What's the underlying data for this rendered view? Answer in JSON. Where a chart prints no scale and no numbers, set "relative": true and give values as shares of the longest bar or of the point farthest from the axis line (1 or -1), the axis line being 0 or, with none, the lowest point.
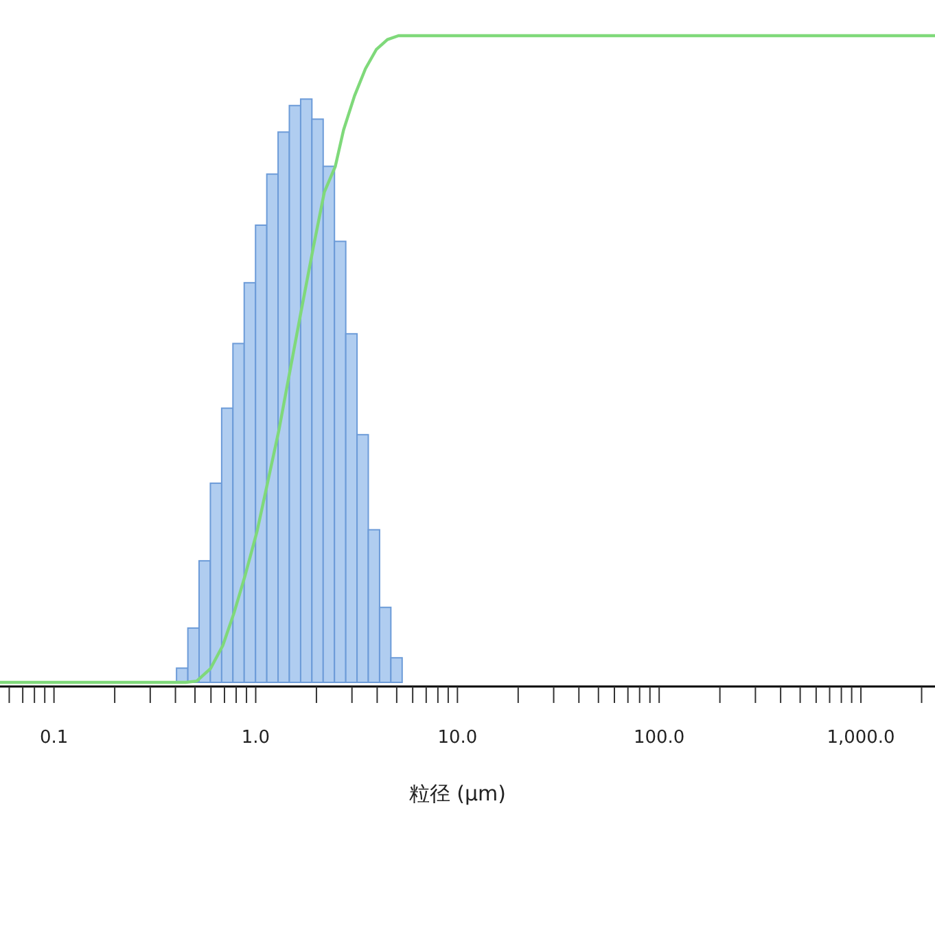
{
  "chart_data": {
    "type": "histogram",
    "xlabel": "粒径 (μm)",
    "log": "x",
    "relative": true,
    "tick_labels": "x",
    "xlim": [
      0.054,
      2330
    ],
    "xticks": [
      {
        "value": 0.06,
        "label": null
      },
      {
        "value": 0.07,
        "label": null
      },
      {
        "value": 0.08,
        "label": null
      },
      {
        "value": 0.09,
        "label": null
      },
      {
        "value": 0.1,
        "label": "0.1"
      },
      {
        "value": 0.2,
        "label": null
      },
      {
        "value": 0.3,
        "label": null
      },
      {
        "value": 0.4,
        "label": null
      },
      {
        "value": 0.5,
        "label": null
      },
      {
        "value": 0.6,
        "label": null
      },
      {
        "value": 0.7,
        "label": null
      },
      {
        "value": 0.8,
        "label": null
      },
      {
        "value": 0.9,
        "label": null
      },
      {
        "value": 1,
        "label": "1.0"
      },
      {
        "value": 2,
        "label": null
      },
      {
        "value": 3,
        "label": null
      },
      {
        "value": 4,
        "label": null
      },
      {
        "value": 5,
        "label": null
      },
      {
        "value": 6,
        "label": null
      },
      {
        "value": 7,
        "label": null
      },
      {
        "value": 8,
        "label": null
      },
      {
        "value": 9,
        "label": null
      },
      {
        "value": 10,
        "label": "10.0"
      },
      {
        "value": 20,
        "label": null
      },
      {
        "value": 30,
        "label": null
      },
      {
        "value": 40,
        "label": null
      },
      {
        "value": 50,
        "label": null
      },
      {
        "value": 60,
        "label": null
      },
      {
        "value": 70,
        "label": null
      },
      {
        "value": 80,
        "label": null
      },
      {
        "value": 90,
        "label": null
      },
      {
        "value": 100,
        "label": "100.0"
      },
      {
        "value": 200,
        "label": null
      },
      {
        "value": 300,
        "label": null
      },
      {
        "value": 400,
        "label": null
      },
      {
        "value": 500,
        "label": null
      },
      {
        "value": 600,
        "label": null
      },
      {
        "value": 700,
        "label": null
      },
      {
        "value": 800,
        "label": null
      },
      {
        "value": 900,
        "label": null
      },
      {
        "value": 1000,
        "label": "1,000.0"
      },
      {
        "value": 2000,
        "label": null
      }
    ],
    "bins": [
      0.405,
      0.461,
      0.524,
      0.596,
      0.678,
      0.771,
      0.877,
      0.998,
      1.135,
      1.291,
      1.468,
      1.67,
      1.899,
      2.16,
      2.457,
      2.795,
      3.179,
      3.615,
      4.112,
      4.677,
      5.32
    ],
    "values": [
      0.022,
      0.084,
      0.188,
      0.308,
      0.424,
      0.524,
      0.618,
      0.707,
      0.786,
      0.851,
      0.892,
      0.902,
      0.871,
      0.798,
      0.682,
      0.539,
      0.383,
      0.236,
      0.116,
      0.038
    ],
    "color": "#b0cdf0",
    "series": [
      {
        "type": "line",
        "color": "#7fd97a",
        "x": [
          0.054,
          0.45,
          0.51,
          0.596,
          0.687,
          0.778,
          0.882,
          1.016,
          1.151,
          1.305,
          1.479,
          1.677,
          1.931,
          2.188,
          2.481,
          2.725,
          3.089,
          3.501,
          3.968,
          4.498,
          5.1,
          2330
        ],
        "values": [
          0,
          0,
          0.002,
          0.021,
          0.057,
          0.106,
          0.163,
          0.234,
          0.312,
          0.391,
          0.482,
          0.573,
          0.673,
          0.758,
          0.798,
          0.854,
          0.907,
          0.949,
          0.979,
          0.994,
          1,
          1
        ]
      }
    ]
  }
}
